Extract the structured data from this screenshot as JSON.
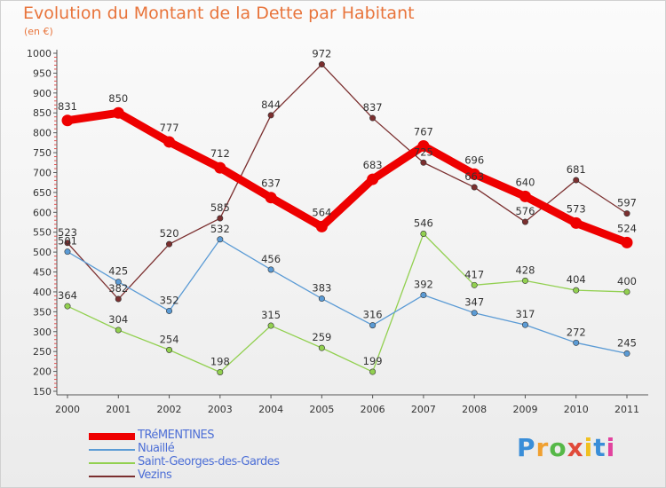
{
  "title": "Evolution du Montant de la Dette par Habitant",
  "subtitle": "(en €)",
  "logo_text": "Proxiti",
  "chart_data": {
    "type": "line",
    "title": "Evolution du Montant de la Dette par Habitant",
    "subtitle": "(en €)",
    "xlabel": "",
    "ylabel": "",
    "x": [
      "2000",
      "2001",
      "2002",
      "2003",
      "2004",
      "2005",
      "2006",
      "2007",
      "2008",
      "2009",
      "2010",
      "2011"
    ],
    "ylim": [
      150,
      1000
    ],
    "yticks": [
      150,
      200,
      250,
      300,
      350,
      400,
      450,
      500,
      550,
      600,
      650,
      700,
      750,
      800,
      850,
      900,
      950,
      1000
    ],
    "grid": false,
    "legend_position": "bottom-left",
    "series": [
      {
        "name": "TRéMENTINES",
        "color": "#ee0000",
        "values": [
          831,
          850,
          777,
          712,
          637,
          564,
          683,
          767,
          696,
          640,
          573,
          524
        ],
        "labels": [
          "831",
          "850",
          "777",
          "712",
          "637",
          "564",
          "683",
          "767",
          "696",
          "640",
          "573",
          "524"
        ]
      },
      {
        "name": "Nuaillé",
        "color": "#5b9bd5",
        "values": [
          501,
          425,
          352,
          532,
          456,
          383,
          316,
          392,
          347,
          317,
          272,
          245
        ],
        "labels": [
          "501",
          "425",
          "352",
          "532",
          "456",
          "383",
          "316",
          "392",
          "347",
          "317",
          "272",
          "245"
        ]
      },
      {
        "name": "Saint-Georges-des-Gardes",
        "color": "#92d050",
        "values": [
          364,
          304,
          254,
          198,
          315,
          259,
          199,
          546,
          417,
          428,
          404,
          400
        ],
        "labels": [
          "364",
          "304",
          "254",
          "198",
          "315",
          "259",
          "199",
          "546",
          "417",
          "428",
          "404",
          "400"
        ]
      },
      {
        "name": "Vezins",
        "color": "#7b2f2f",
        "values": [
          523,
          382,
          520,
          585,
          844,
          972,
          837,
          725,
          663,
          576,
          681,
          597
        ],
        "labels": [
          "523",
          "382",
          "520",
          "585",
          "844",
          "972",
          "837",
          "725",
          "663",
          "576",
          "681",
          "597"
        ]
      }
    ]
  }
}
